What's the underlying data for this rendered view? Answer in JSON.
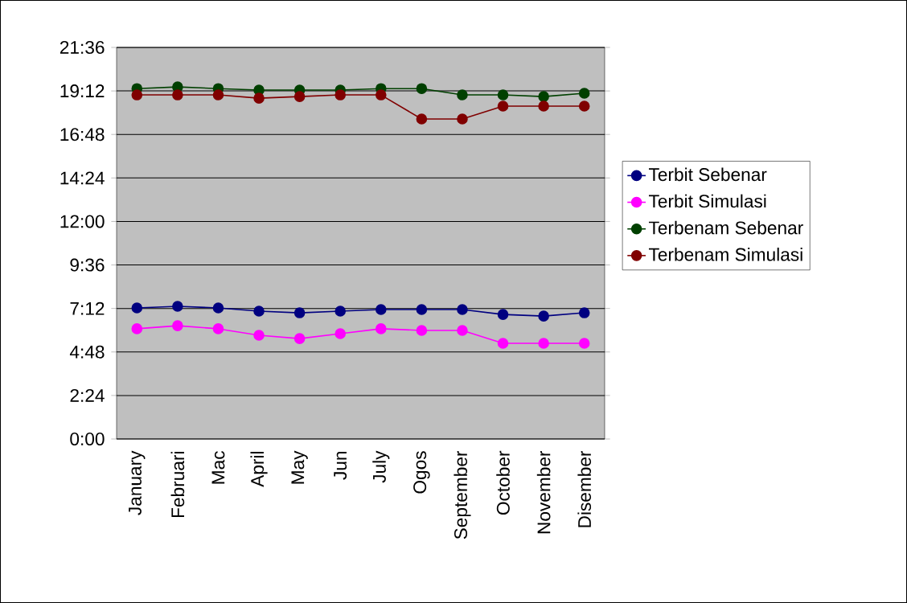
{
  "chart_data": {
    "type": "line",
    "categories": [
      "January",
      "Februari",
      "Mac",
      "April",
      "May",
      "Jun",
      "July",
      "Ogos",
      "September",
      "October",
      "November",
      "Disember"
    ],
    "series": [
      {
        "name": "Terbit Sebenar",
        "color": "#000080",
        "values": [
          7.23,
          7.32,
          7.23,
          7.05,
          6.96,
          7.05,
          7.14,
          7.14,
          7.14,
          6.87,
          6.78,
          6.96
        ]
      },
      {
        "name": "Terbit Simulasi",
        "color": "#ff00ff",
        "values": [
          6.08,
          6.25,
          6.08,
          5.72,
          5.54,
          5.81,
          6.08,
          5.99,
          5.99,
          5.28,
          5.28,
          5.28
        ]
      },
      {
        "name": "Terbenam Sebenar",
        "color": "#004000",
        "values": [
          19.33,
          19.42,
          19.33,
          19.25,
          19.25,
          19.25,
          19.33,
          19.33,
          18.98,
          18.98,
          18.89,
          19.07
        ]
      },
      {
        "name": "Terbenam Simulasi",
        "color": "#800000",
        "values": [
          18.98,
          18.98,
          18.98,
          18.8,
          18.89,
          18.98,
          18.98,
          17.65,
          17.65,
          18.36,
          18.36,
          18.36
        ]
      }
    ],
    "ylim": [
      0,
      21.6
    ],
    "yticks": [
      {
        "value": 0,
        "label": "0:00"
      },
      {
        "value": 2.4,
        "label": "2:24"
      },
      {
        "value": 4.8,
        "label": "4:48"
      },
      {
        "value": 7.2,
        "label": "7:12"
      },
      {
        "value": 9.6,
        "label": "9:36"
      },
      {
        "value": 12,
        "label": "12:00"
      },
      {
        "value": 14.4,
        "label": "14:24"
      },
      {
        "value": 16.8,
        "label": "16:48"
      },
      {
        "value": 19.2,
        "label": "19:12"
      },
      {
        "value": 21.6,
        "label": "21:36"
      }
    ],
    "grid": "y",
    "legend": "right",
    "marker": "circle",
    "line_style": "solid"
  }
}
